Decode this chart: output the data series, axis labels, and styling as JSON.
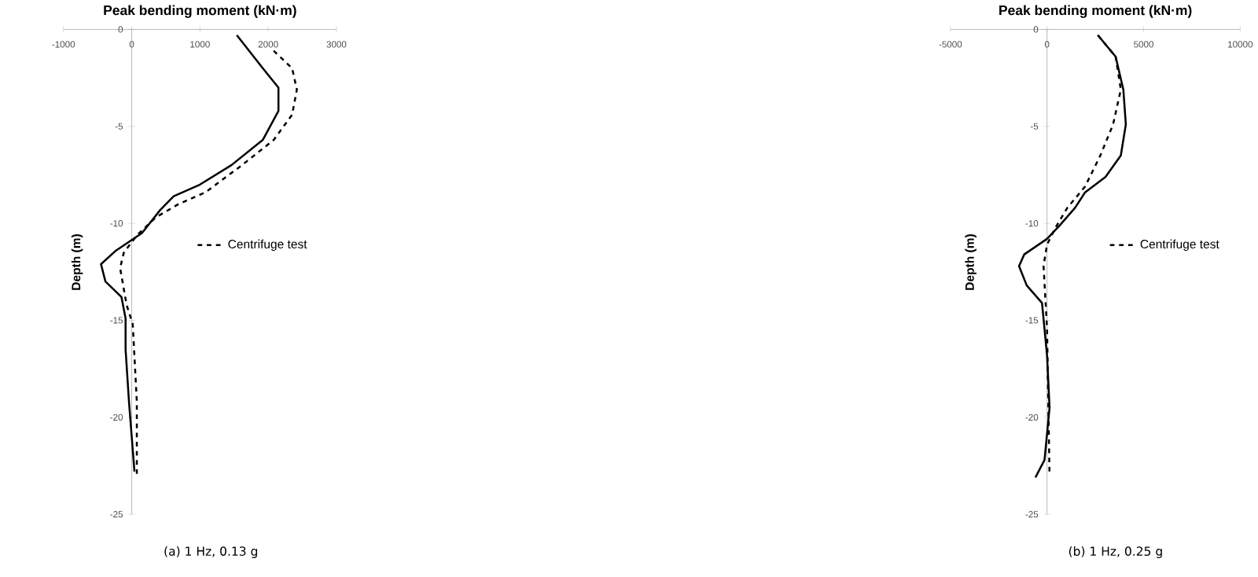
{
  "chart_data": [
    {
      "type": "line",
      "xlabel": "Peak bending moment (kN·m)",
      "ylabel": "Depth (m)",
      "xlim": [
        -1000,
        3000
      ],
      "xticks": [
        -1000,
        0,
        1000,
        2000,
        3000
      ],
      "ylim": [
        -25,
        0
      ],
      "yticks": [
        -25,
        -20,
        -15,
        -10,
        -5,
        0
      ],
      "legend": "right",
      "annotations": [
        "(a) 1 Hz, 0.13 g"
      ],
      "series": [
        {
          "color": "#000000",
          "line_style": "solid",
          "x": [
            1540,
            1920,
            2150,
            2150,
            1920,
            1460,
            1000,
            615,
            420,
            150,
            -230,
            -450,
            -385,
            -150,
            -90,
            -90,
            -40,
            40
          ],
          "values": [
            -0.3,
            -2.0,
            -3.0,
            -4.2,
            -5.7,
            -7.0,
            -8.0,
            -8.6,
            -9.3,
            -10.5,
            -11.4,
            -12.1,
            -13.0,
            -13.8,
            -14.9,
            -16.5,
            -19.2,
            -22.8
          ]
        },
        {
          "name": "Centrifuge test",
          "color": "#000000",
          "line_style": "dashed",
          "x": [
            2080,
            2350,
            2420,
            2350,
            2080,
            1615,
            1080,
            690,
            350,
            80,
            -115,
            -170,
            -75,
            15,
            75,
            75
          ],
          "values": [
            -1.1,
            -2.0,
            -3.1,
            -4.4,
            -5.7,
            -7.0,
            -8.4,
            -9.0,
            -9.7,
            -10.6,
            -11.5,
            -12.3,
            -14.2,
            -15.2,
            -19.2,
            -23.0
          ]
        }
      ]
    },
    {
      "type": "line",
      "xlabel": "Peak bending moment (kN·m)",
      "ylabel": "Depth (m)",
      "xlim": [
        -5000,
        10000
      ],
      "xticks": [
        -5000,
        0,
        5000,
        10000
      ],
      "ylim": [
        -25,
        0
      ],
      "yticks": [
        -25,
        -20,
        -15,
        -10,
        -5,
        0
      ],
      "legend": "right",
      "annotations": [
        "(b) 1 Hz, 0.25 g"
      ],
      "series": [
        {
          "color": "#000000",
          "line_style": "solid",
          "x": [
            2630,
            3550,
            3950,
            4080,
            3820,
            3030,
            1970,
            1450,
            660,
            0,
            -1180,
            -1450,
            -1050,
            -260,
            0,
            130,
            -130,
            -600
          ],
          "values": [
            -0.3,
            -1.4,
            -3.1,
            -4.9,
            -6.5,
            -7.6,
            -8.4,
            -9.2,
            -10.1,
            -10.8,
            -11.6,
            -12.2,
            -13.2,
            -14.1,
            -16.8,
            -19.5,
            -22.2,
            -23.1
          ]
        },
        {
          "name": "Centrifuge test",
          "color": "#000000",
          "line_style": "dashed",
          "x": [
            2630,
            3550,
            3820,
            3420,
            2760,
            1970,
            1050,
            390,
            0,
            -180,
            0,
            130
          ],
          "values": [
            -0.3,
            -1.4,
            -3.1,
            -4.9,
            -6.5,
            -8.1,
            -9.2,
            -10.3,
            -11.1,
            -12.2,
            -15.4,
            -23.0
          ]
        }
      ]
    }
  ]
}
